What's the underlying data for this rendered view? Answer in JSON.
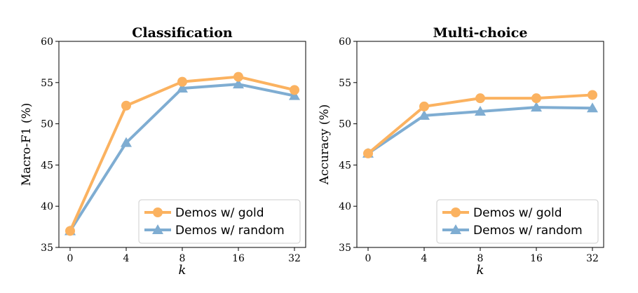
{
  "chart_data": [
    {
      "type": "line",
      "title": "Classification",
      "xlabel": "k",
      "ylabel": "Macro-F1 (%)",
      "categories": [
        "0",
        "4",
        "8",
        "16",
        "32"
      ],
      "ylim": [
        35,
        60
      ],
      "yticks": [
        35,
        40,
        45,
        50,
        55,
        60
      ],
      "legend_position": "lower-right",
      "series": [
        {
          "name": "Demos w/ gold",
          "color": "#fbb260",
          "marker": "circle",
          "values": [
            37.0,
            52.2,
            55.1,
            55.7,
            54.1
          ]
        },
        {
          "name": "Demos w/ random",
          "color": "#7fadd2",
          "marker": "triangle",
          "values": [
            37.0,
            47.7,
            54.3,
            54.8,
            53.4
          ]
        }
      ]
    },
    {
      "type": "line",
      "title": "Multi-choice",
      "xlabel": "k",
      "ylabel": "Accuracy (%)",
      "categories": [
        "0",
        "4",
        "8",
        "16",
        "32"
      ],
      "ylim": [
        35,
        60
      ],
      "yticks": [
        35,
        40,
        45,
        50,
        55,
        60
      ],
      "legend_position": "lower-right",
      "series": [
        {
          "name": "Demos w/ gold",
          "color": "#fbb260",
          "marker": "circle",
          "values": [
            46.4,
            52.1,
            53.1,
            53.1,
            53.5
          ]
        },
        {
          "name": "Demos w/ random",
          "color": "#7fadd2",
          "marker": "triangle",
          "values": [
            46.4,
            51.0,
            51.5,
            52.0,
            51.9
          ]
        }
      ]
    }
  ]
}
